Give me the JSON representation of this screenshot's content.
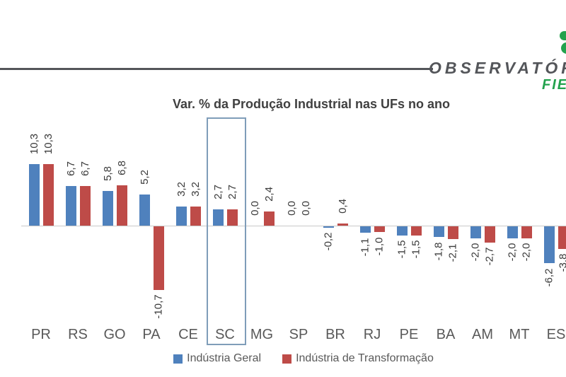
{
  "header": {
    "logo_text": "OBSERVATÓRIO",
    "logo_subtext": "FIESC",
    "colors": {
      "divider": "#54565A",
      "logo_text": "#54565A",
      "logo_green": "#23A24D"
    }
  },
  "chart_data": {
    "type": "bar",
    "title": "Var. % da Produção Industrial nas UFs no ano",
    "categories": [
      "PR",
      "RS",
      "GO",
      "PA",
      "CE",
      "SC",
      "MG",
      "SP",
      "BR",
      "RJ",
      "PE",
      "BA",
      "AM",
      "MT",
      "ES"
    ],
    "series": [
      {
        "name": "Indústria Geral",
        "color": "#4F81BD",
        "values": [
          10.3,
          6.7,
          5.8,
          5.2,
          3.2,
          2.7,
          0.0,
          0.0,
          -0.2,
          -1.1,
          -1.5,
          -1.8,
          -2.0,
          -2.0,
          -6.2
        ]
      },
      {
        "name": "Indústria de Transformação",
        "color": "#BE4B48",
        "values": [
          10.3,
          6.7,
          6.8,
          -10.7,
          3.2,
          2.7,
          2.4,
          0.0,
          0.4,
          -1.0,
          -1.5,
          -2.1,
          -2.7,
          -2.0,
          -3.8
        ]
      }
    ],
    "value_label_decimals": 1,
    "decimal_separator": ",",
    "highlighted_category": "SC",
    "highlight_border_color": "#7F9DB9",
    "xlabel": "",
    "ylabel": "",
    "ylim_estimate": [
      -12,
      12
    ],
    "gridlines": false,
    "legend_position": "bottom",
    "zero_line_color": "#C9C9C9",
    "text_colors": {
      "title": "#404040",
      "value_labels": "#3A3A3A",
      "axis_labels": "#595959",
      "legend": "#595959"
    }
  }
}
